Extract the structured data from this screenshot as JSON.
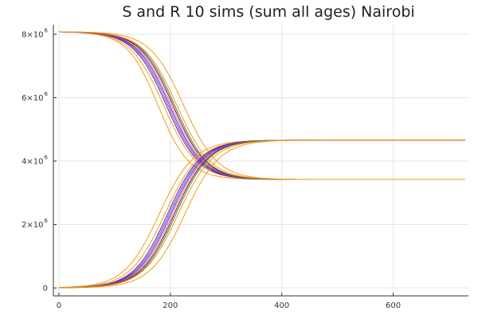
{
  "chart_data": {
    "type": "line",
    "title": "S and R 10 sims (sum all ages) Nairobi",
    "xlabel": "",
    "ylabel": "",
    "xlim": [
      -10,
      735
    ],
    "ylim": [
      -250000,
      8300000
    ],
    "x_ticks": [
      {
        "value": 0,
        "label": "0"
      },
      {
        "value": 200,
        "label": "200"
      },
      {
        "value": 400,
        "label": "400"
      },
      {
        "value": 600,
        "label": "600"
      }
    ],
    "y_ticks": [
      {
        "value": 0,
        "base": "0",
        "exp": ""
      },
      {
        "value": 2000000,
        "base": "2×10",
        "exp": "6"
      },
      {
        "value": 4000000,
        "base": "4×10",
        "exp": "6"
      },
      {
        "value": 6000000,
        "base": "6×10",
        "exp": "6"
      },
      {
        "value": 8000000,
        "base": "8×10",
        "exp": "6"
      }
    ],
    "grid": true,
    "legend": "none",
    "model": {
      "initial_susceptible": 8080000,
      "final_susceptible": 3420000,
      "initial_recovered": 0,
      "final_recovered": 4660000,
      "x_end": 730
    },
    "series": [
      {
        "group": "S",
        "midpoint": 178,
        "rate": 0.0358,
        "color": "#f39c12"
      },
      {
        "group": "S",
        "midpoint": 188,
        "rate": 0.0335,
        "color": "#f39c12"
      },
      {
        "group": "S",
        "midpoint": 193,
        "rate": 0.034,
        "color": "#6a0dad"
      },
      {
        "group": "S",
        "midpoint": 196,
        "rate": 0.034,
        "color": "#3a5fcd"
      },
      {
        "group": "S",
        "midpoint": 199,
        "rate": 0.034,
        "color": "#6a0dad"
      },
      {
        "group": "S",
        "midpoint": 202,
        "rate": 0.034,
        "color": "#e377c2"
      },
      {
        "group": "S",
        "midpoint": 205,
        "rate": 0.034,
        "color": "#8b0000"
      },
      {
        "group": "S",
        "midpoint": 208,
        "rate": 0.034,
        "color": "#2e8b57"
      },
      {
        "group": "S",
        "midpoint": 212,
        "rate": 0.033,
        "color": "#f39c12"
      },
      {
        "group": "S",
        "midpoint": 224,
        "rate": 0.033,
        "color": "#f39c12"
      },
      {
        "group": "R",
        "midpoint": 180,
        "rate": 0.032,
        "color": "#f39c12"
      },
      {
        "group": "R",
        "midpoint": 190,
        "rate": 0.032,
        "color": "#f39c12"
      },
      {
        "group": "R",
        "midpoint": 195,
        "rate": 0.033,
        "color": "#6a0dad"
      },
      {
        "group": "R",
        "midpoint": 198,
        "rate": 0.033,
        "color": "#3a5fcd"
      },
      {
        "group": "R",
        "midpoint": 201,
        "rate": 0.033,
        "color": "#6a0dad"
      },
      {
        "group": "R",
        "midpoint": 204,
        "rate": 0.033,
        "color": "#e377c2"
      },
      {
        "group": "R",
        "midpoint": 207,
        "rate": 0.033,
        "color": "#8b0000"
      },
      {
        "group": "R",
        "midpoint": 210,
        "rate": 0.033,
        "color": "#2e8b57"
      },
      {
        "group": "R",
        "midpoint": 214,
        "rate": 0.032,
        "color": "#f39c12"
      },
      {
        "group": "R",
        "midpoint": 226,
        "rate": 0.032,
        "color": "#f39c12"
      }
    ]
  }
}
